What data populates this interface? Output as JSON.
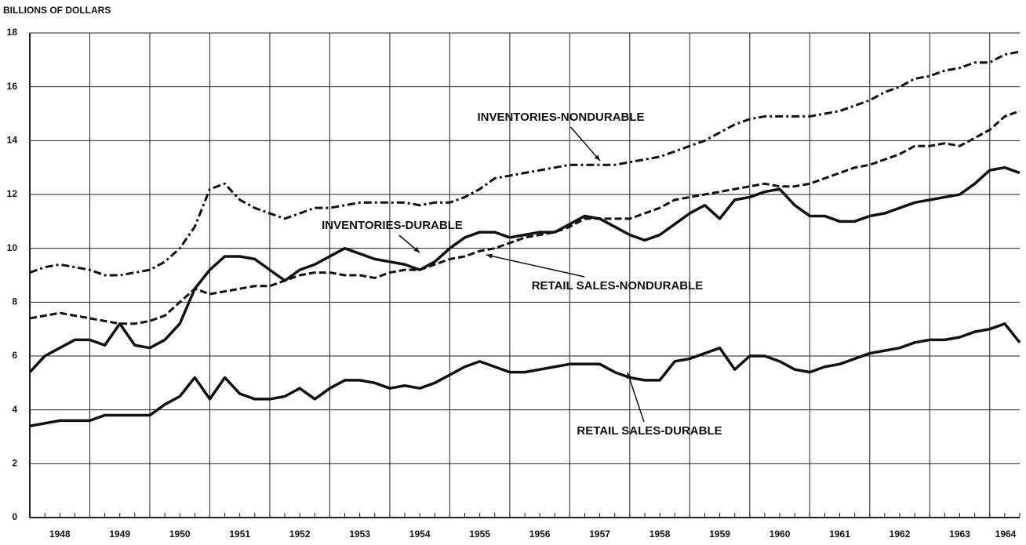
{
  "chart_data": {
    "type": "line",
    "y_label": "BILLIONS OF DOLLARS",
    "x": [
      1948,
      1948.25,
      1948.5,
      1948.75,
      1949,
      1949.25,
      1949.5,
      1949.75,
      1950,
      1950.25,
      1950.5,
      1950.75,
      1951,
      1951.25,
      1951.5,
      1951.75,
      1952,
      1952.25,
      1952.5,
      1952.75,
      1953,
      1953.25,
      1953.5,
      1953.75,
      1954,
      1954.25,
      1954.5,
      1954.75,
      1955,
      1955.25,
      1955.5,
      1955.75,
      1956,
      1956.25,
      1956.5,
      1956.75,
      1957,
      1957.25,
      1957.5,
      1957.75,
      1958,
      1958.25,
      1958.5,
      1958.75,
      1959,
      1959.25,
      1959.5,
      1959.75,
      1960,
      1960.25,
      1960.5,
      1960.75,
      1961,
      1961.25,
      1961.5,
      1961.75,
      1962,
      1962.25,
      1962.5,
      1962.75,
      1963,
      1963.25,
      1963.5,
      1963.75,
      1964,
      1964.25,
      1964.5
    ],
    "series": [
      {
        "name": "INVENTORIES-NONDURABLE",
        "color": "#111111",
        "dash": "dashdot",
        "values": [
          9.1,
          9.3,
          9.4,
          9.3,
          9.2,
          9.0,
          9.0,
          9.1,
          9.2,
          9.5,
          10.0,
          10.8,
          12.2,
          12.4,
          11.8,
          11.5,
          11.3,
          11.1,
          11.3,
          11.5,
          11.5,
          11.6,
          11.7,
          11.7,
          11.7,
          11.7,
          11.6,
          11.7,
          11.7,
          11.9,
          12.2,
          12.6,
          12.7,
          12.8,
          12.9,
          13.0,
          13.1,
          13.1,
          13.1,
          13.1,
          13.2,
          13.3,
          13.4,
          13.6,
          13.8,
          14.0,
          14.3,
          14.6,
          14.8,
          14.9,
          14.9,
          14.9,
          14.9,
          15.0,
          15.1,
          15.3,
          15.5,
          15.8,
          16.0,
          16.3,
          16.4,
          16.6,
          16.7,
          16.9,
          16.9,
          17.2,
          17.3
        ]
      },
      {
        "name": "INVENTORIES-DURABLE",
        "color": "#111111",
        "dash": "dashed",
        "values": [
          7.4,
          7.5,
          7.6,
          7.5,
          7.4,
          7.3,
          7.2,
          7.2,
          7.3,
          7.5,
          8.0,
          8.5,
          8.3,
          8.4,
          8.5,
          8.6,
          8.6,
          8.8,
          9.0,
          9.1,
          9.1,
          9.0,
          9.0,
          8.9,
          9.1,
          9.2,
          9.2,
          9.4,
          9.6,
          9.7,
          9.9,
          10.0,
          10.2,
          10.4,
          10.5,
          10.6,
          10.8,
          11.1,
          11.1,
          11.1,
          11.1,
          11.3,
          11.5,
          11.8,
          11.9,
          12.0,
          12.1,
          12.2,
          12.3,
          12.4,
          12.3,
          12.3,
          12.4,
          12.6,
          12.8,
          13.0,
          13.1,
          13.3,
          13.5,
          13.8,
          13.8,
          13.9,
          13.8,
          14.1,
          14.4,
          14.9,
          15.1
        ]
      },
      {
        "name": "RETAIL SALES-NONDURABLE",
        "color": "#111111",
        "dash": "solid",
        "values": [
          5.4,
          6.0,
          6.3,
          6.6,
          6.6,
          6.4,
          7.2,
          6.4,
          6.3,
          6.6,
          7.2,
          8.5,
          9.2,
          9.7,
          9.7,
          9.6,
          9.2,
          8.8,
          9.2,
          9.4,
          9.7,
          10.0,
          9.8,
          9.6,
          9.5,
          9.4,
          9.2,
          9.5,
          10.0,
          10.4,
          10.6,
          10.6,
          10.4,
          10.5,
          10.6,
          10.6,
          10.9,
          11.2,
          11.1,
          10.8,
          10.5,
          10.3,
          10.5,
          10.9,
          11.3,
          11.6,
          11.1,
          11.8,
          11.9,
          12.1,
          12.2,
          11.6,
          11.2,
          11.2,
          11.0,
          11.0,
          11.2,
          11.3,
          11.5,
          11.7,
          11.8,
          11.9,
          12.0,
          12.4,
          12.9,
          13.0,
          12.8
        ]
      },
      {
        "name": "RETAIL SALES-DURABLE",
        "color": "#111111",
        "dash": "solid",
        "values": [
          3.4,
          3.5,
          3.6,
          3.6,
          3.6,
          3.8,
          3.8,
          3.8,
          3.8,
          4.2,
          4.5,
          5.2,
          4.4,
          5.2,
          4.6,
          4.4,
          4.4,
          4.5,
          4.8,
          4.4,
          4.8,
          5.1,
          5.1,
          5.0,
          4.8,
          4.9,
          4.8,
          5.0,
          5.3,
          5.6,
          5.8,
          5.6,
          5.4,
          5.4,
          5.5,
          5.6,
          5.7,
          5.7,
          5.7,
          5.4,
          5.2,
          5.1,
          5.1,
          5.8,
          5.9,
          6.1,
          6.3,
          5.5,
          6.0,
          6.0,
          5.8,
          5.5,
          5.4,
          5.6,
          5.7,
          5.9,
          6.1,
          6.2,
          6.3,
          6.5,
          6.6,
          6.6,
          6.7,
          6.9,
          7.0,
          7.2,
          6.5
        ]
      }
    ],
    "xlim": [
      1948,
      1964.5
    ],
    "xticks": [
      1948,
      1949,
      1950,
      1951,
      1952,
      1953,
      1954,
      1955,
      1956,
      1957,
      1958,
      1959,
      1960,
      1961,
      1962,
      1963,
      1964
    ],
    "ylim": [
      0,
      18
    ],
    "yticks": [
      0,
      2,
      4,
      6,
      8,
      10,
      12,
      14,
      16,
      18
    ],
    "grid": true
  }
}
